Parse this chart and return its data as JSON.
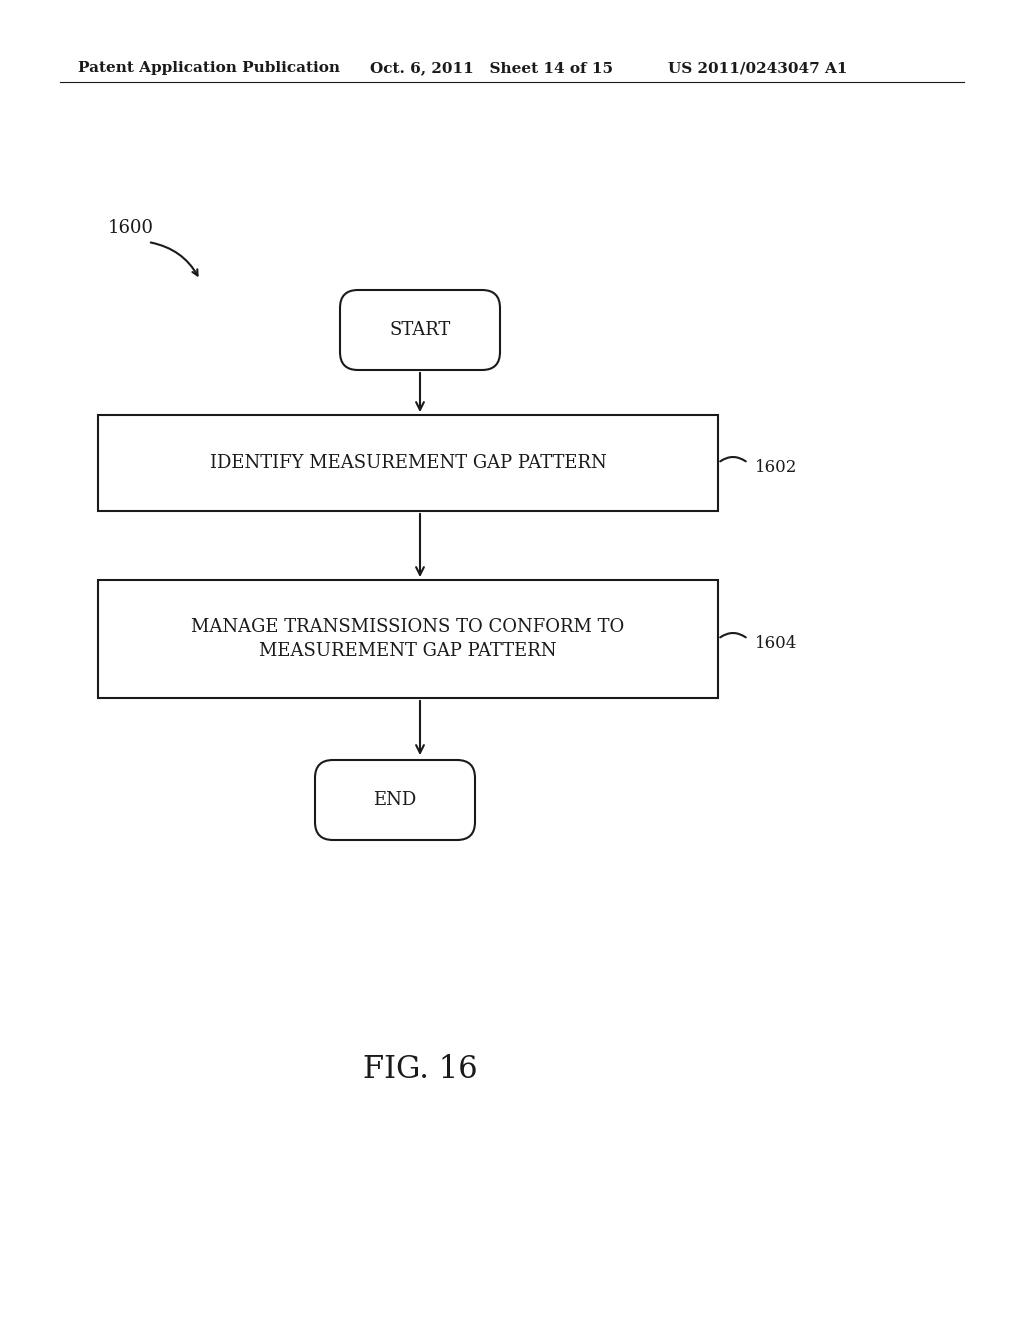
{
  "bg_color": "#ffffff",
  "header_left": "Patent Application Publication",
  "header_mid": "Oct. 6, 2011   Sheet 14 of 15",
  "header_right": "US 2011/0243047 A1",
  "fig_label": "FIG. 16",
  "diagram_label": "1600",
  "start_text": "START",
  "box1_text": "IDENTIFY MEASUREMENT GAP PATTERN",
  "box1_label": "1602",
  "box2_text_line1": "MANAGE TRANSMISSIONS TO CONFORM TO",
  "box2_text_line2": "MEASUREMENT GAP PATTERN",
  "box2_label": "1604",
  "end_text": "END",
  "line_color": "#1a1a1a",
  "text_color": "#1a1a1a",
  "bg_color_inner": "#ffffff"
}
